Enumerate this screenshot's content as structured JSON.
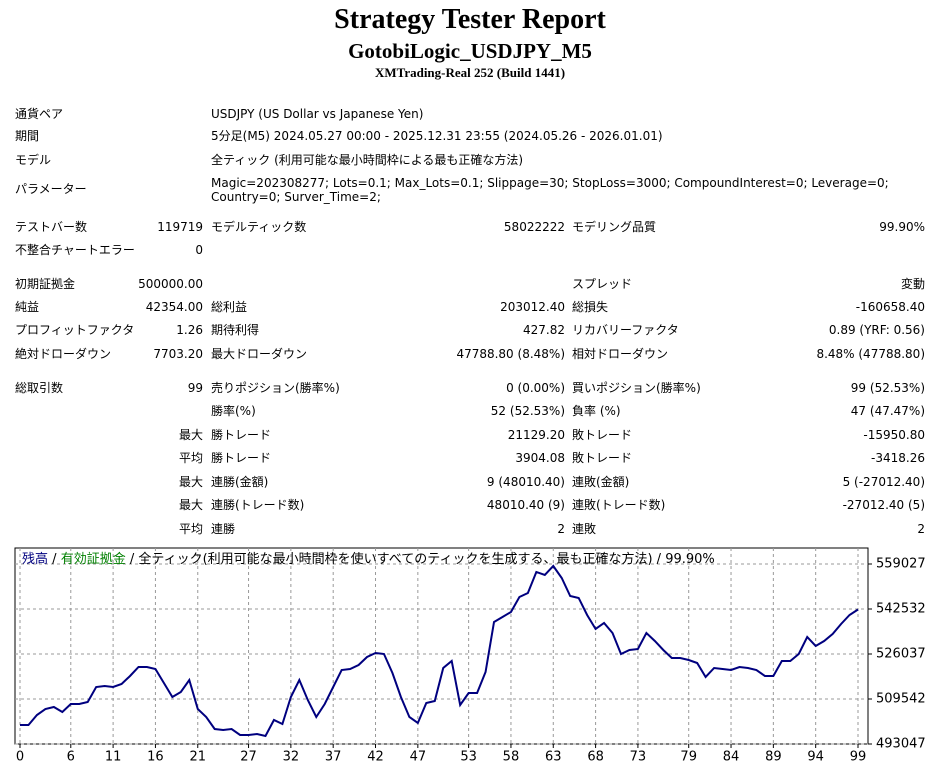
{
  "header": {
    "title": "Strategy Tester Report",
    "subtitle": "GotobiLogic_USDJPY_M5",
    "server": "XMTrading-Real 252 (Build 1441)"
  },
  "info": [
    {
      "label": "通貨ペア",
      "value": "USDJPY (US Dollar vs Japanese Yen)"
    },
    {
      "label": "期間",
      "value": "5分足(M5) 2024.05.27 00:00 - 2025.12.31 23:55 (2024.05.26 - 2026.01.01)"
    },
    {
      "label": "モデル",
      "value": "全ティック (利用可能な最小時間枠による最も正確な方法)"
    },
    {
      "label": "パラメーター",
      "value": "Magic=202308277; Lots=0.1; Max_Lots=0.1; Slippage=30; StopLoss=3000; CompoundInterest=0; Leverage=0; Country=0; Surver_Time=2;"
    }
  ],
  "table": {
    "rows": [
      [
        "テストバー数",
        "119719",
        "モデルティック数",
        "58022222",
        "モデリング品質",
        "99.90%"
      ],
      [
        "不整合チャートエラー",
        "0",
        null,
        null,
        null,
        null
      ],
      [
        "初期証拠金",
        "500000.00",
        null,
        null,
        "スプレッド",
        "変動"
      ],
      [
        "純益",
        "42354.00",
        "総利益",
        "203012.40",
        "総損失",
        "-160658.40"
      ],
      [
        "プロフィットファクタ",
        "1.26",
        "期待利得",
        "427.82",
        "リカバリーファクタ",
        "0.89 (YRF: 0.56)"
      ],
      [
        "絶対ドローダウン",
        "7703.20",
        "最大ドローダウン",
        "47788.80 (8.48%)",
        "相対ドローダウン",
        "8.48% (47788.80)"
      ],
      [
        "総取引数",
        "99",
        "売りポジション(勝率%)",
        "0 (0.00%)",
        "買いポジション(勝率%)",
        "99 (52.53%)"
      ],
      [
        null,
        null,
        "勝率(%)",
        "52 (52.53%)",
        "負率 (%)",
        "47 (47.47%)"
      ],
      [
        null,
        "最大",
        "勝トレード",
        "21129.20",
        "敗トレード",
        "-15950.80"
      ],
      [
        null,
        "平均",
        "勝トレード",
        "3904.08",
        "敗トレード",
        "-3418.26"
      ],
      [
        null,
        "最大",
        "連勝(金額)",
        "9 (48010.40)",
        "連敗(金額)",
        "5 (-27012.40)"
      ],
      [
        null,
        "最大",
        "連勝(トレード数)",
        "48010.40 (9)",
        "連敗(トレード数)",
        "-27012.40 (5)"
      ],
      [
        null,
        "平均",
        "連勝",
        "2",
        "連敗",
        "2"
      ]
    ]
  },
  "chart_data": {
    "type": "line",
    "equity_label": "有効証拠金",
    "separator": "/",
    "model_label": "全ティック(利用可能な最小時間枠を使いすべてのティックを生成する、最も正確な方法)",
    "quality_label": "99.90%",
    "x": [
      0,
      1,
      2,
      3,
      4,
      5,
      6,
      7,
      8,
      9,
      10,
      11,
      12,
      13,
      14,
      15,
      16,
      17,
      18,
      19,
      20,
      21,
      22,
      23,
      24,
      25,
      26,
      27,
      28,
      29,
      30,
      31,
      32,
      33,
      34,
      35,
      36,
      37,
      38,
      39,
      40,
      41,
      42,
      43,
      44,
      45,
      46,
      47,
      48,
      49,
      50,
      51,
      52,
      53,
      54,
      55,
      56,
      57,
      58,
      59,
      60,
      61,
      62,
      63,
      64,
      65,
      66,
      67,
      68,
      69,
      70,
      71,
      72,
      73,
      74,
      75,
      76,
      77,
      78,
      79,
      80,
      81,
      82,
      83,
      84,
      85,
      86,
      87,
      88,
      89,
      90,
      91,
      92,
      93,
      94,
      95,
      96,
      97,
      98,
      99
    ],
    "series": [
      {
        "name": "残高",
        "color": "#00007f",
        "values": [
          500000,
          500000,
          503678,
          505878,
          506611,
          504778,
          507711,
          507711,
          508444,
          513943,
          514310,
          513943,
          515043,
          517976,
          521275,
          521275,
          520542,
          515410,
          510277,
          512110,
          516509,
          505878,
          502945,
          498546,
          498179,
          498546,
          496346,
          496346,
          496713,
          495980,
          501845,
          500379,
          510277,
          516509,
          509177,
          502945,
          507711,
          513943,
          520175,
          520542,
          522008,
          524941,
          526407,
          526040,
          519076,
          510277,
          502945,
          500746,
          508078,
          508811,
          520909,
          523475,
          507344,
          511744,
          511744,
          519442,
          537772,
          539605,
          541438,
          546937,
          548404,
          556103,
          555003,
          558302,
          553903,
          547304,
          546571,
          540339,
          535206,
          537406,
          533740,
          526040,
          527507,
          527874,
          533740,
          530807,
          527507,
          524574,
          524574,
          523841,
          522741,
          517609,
          520909,
          520542,
          520175,
          521275,
          520909,
          520175,
          517976,
          517976,
          523475,
          523475,
          526040,
          532273,
          528974,
          530807,
          533373,
          537039,
          540339,
          542354
        ]
      }
    ],
    "equity_color": "#008000",
    "xlim": [
      0,
      99
    ],
    "xticks": [
      0,
      6,
      11,
      16,
      21,
      27,
      32,
      37,
      42,
      47,
      53,
      58,
      63,
      68,
      73,
      79,
      84,
      89,
      94,
      99
    ],
    "ylim": [
      493047,
      564897
    ],
    "yticks": [
      493047,
      509542,
      526037,
      542532,
      559027
    ],
    "grid": true
  }
}
